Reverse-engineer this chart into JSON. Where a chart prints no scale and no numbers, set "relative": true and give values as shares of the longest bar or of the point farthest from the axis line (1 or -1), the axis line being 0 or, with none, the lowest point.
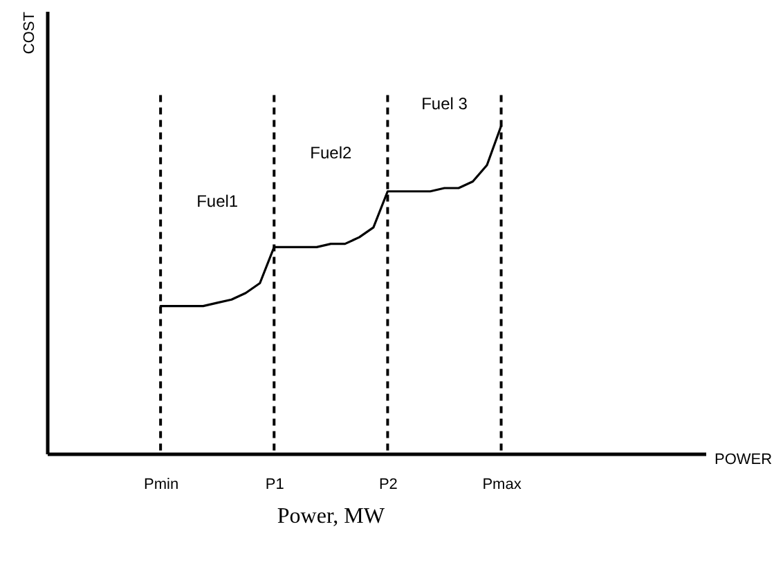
{
  "chart_data": {
    "type": "line",
    "relative": true,
    "xlabel": "POWER",
    "ylabel": "COST",
    "categories": [
      null,
      null,
      null,
      null,
      null,
      null,
      null,
      null,
      "Pmin",
      null,
      null,
      null,
      null,
      null,
      null,
      null,
      "P1",
      null,
      null,
      null,
      null,
      null,
      null,
      null,
      "P2",
      null,
      null,
      null,
      null,
      null,
      null,
      null,
      "Pmax",
      null,
      null,
      null,
      null,
      null,
      null,
      null,
      null,
      null,
      null,
      null,
      null,
      null,
      null
    ],
    "series": [
      {
        "color": "#000000",
        "values": [
          null,
          null,
          null,
          null,
          null,
          null,
          null,
          null,
          0.45,
          0.45,
          0.45,
          0.45,
          0.46,
          0.47,
          0.49,
          0.52,
          0.63,
          0.63,
          0.63,
          0.63,
          0.64,
          0.64,
          0.66,
          0.69,
          0.8,
          0.8,
          0.8,
          0.8,
          0.81,
          0.81,
          0.83,
          0.88,
          1,
          null,
          null,
          null,
          null,
          null,
          null,
          null,
          null,
          null,
          null,
          null,
          null,
          null,
          null
        ]
      }
    ],
    "ref_lines": [
      {
        "axis": "x",
        "value": "Pmin",
        "color": "#000000",
        "line_style": "dashed"
      },
      {
        "axis": "x",
        "value": "P1",
        "color": "#000000",
        "line_style": "dashed"
      },
      {
        "axis": "x",
        "value": "P2",
        "color": "#000000",
        "line_style": "dashed"
      },
      {
        "axis": "x",
        "value": "Pmax",
        "color": "#000000",
        "line_style": "dashed"
      }
    ],
    "annotations": [
      "Fuel1",
      "Fuel2",
      "Fuel 3",
      "Power, MW"
    ],
    "grid": false,
    "line_style": "solid",
    "marker": "none"
  }
}
